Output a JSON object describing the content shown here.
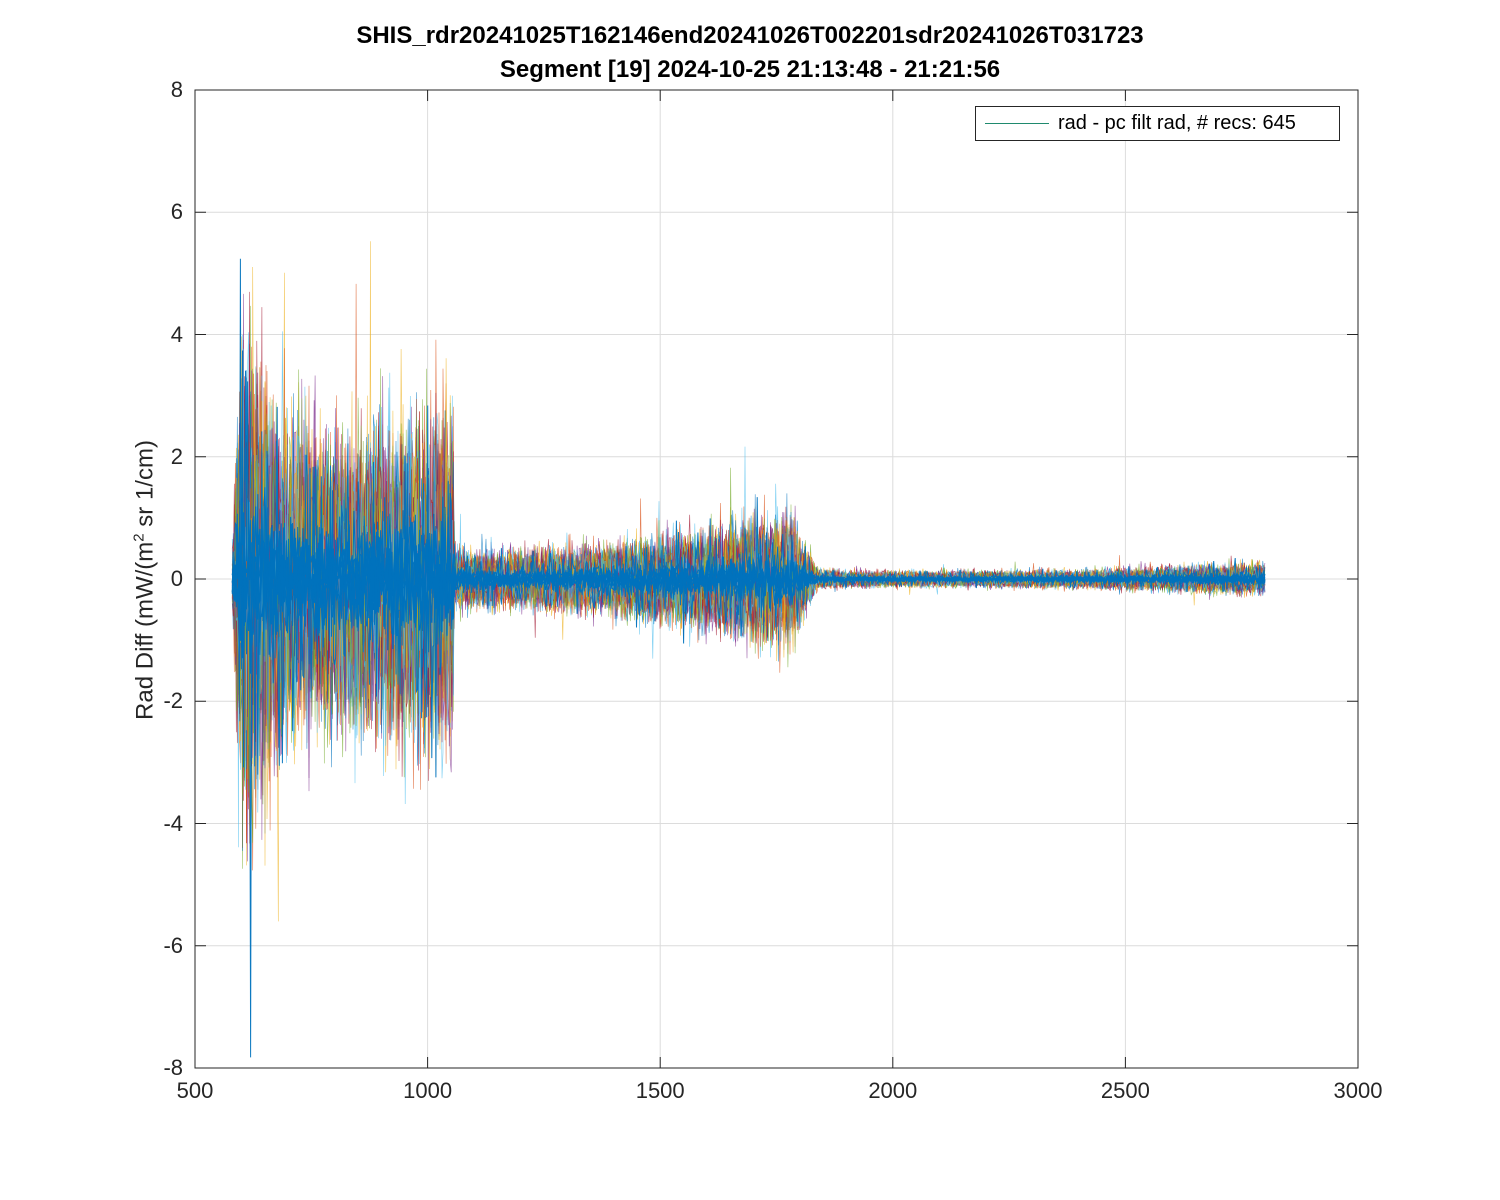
{
  "chart_data": {
    "type": "line",
    "title": "SHIS_rdr20241025T162146end20241026T002201sdr20241026T031723",
    "subtitle": "Segment [19] 2024-10-25 21:13:48 - 21:21:56",
    "xlabel": "",
    "ylabel_main": "Rad Diff (mW/(m",
    "ylabel_sup": "2",
    "ylabel_tail": " sr 1/cm)",
    "xlim": [
      500,
      3000
    ],
    "ylim": [
      -8,
      8
    ],
    "xticks": [
      "500",
      "1000",
      "1500",
      "2000",
      "2500",
      "3000"
    ],
    "yticks": [
      "8",
      "6",
      "4",
      "2",
      "0",
      "-2",
      "-4",
      "-6",
      "-8"
    ],
    "grid": true,
    "legend": {
      "label": "rad - pc filt rad, # recs:  645",
      "placement": "top-right",
      "line_color": "#1f8a6e"
    },
    "series_colors": [
      "#0072BD",
      "#D95319",
      "#EDB120",
      "#7E2F8E",
      "#77AC30",
      "#4DBEEE",
      "#A2142F"
    ],
    "num_records": 645,
    "x_range": [
      580,
      2800
    ],
    "envelope": [
      {
        "x": 580,
        "amp": 1.0
      },
      {
        "x": 600,
        "amp": 7.5
      },
      {
        "x": 640,
        "amp": 6.0
      },
      {
        "x": 700,
        "amp": 4.5
      },
      {
        "x": 800,
        "amp": 4.0
      },
      {
        "x": 900,
        "amp": 4.2
      },
      {
        "x": 1000,
        "amp": 4.6
      },
      {
        "x": 1055,
        "amp": 4.8
      },
      {
        "x": 1058,
        "amp": 0.8
      },
      {
        "x": 1200,
        "amp": 0.8
      },
      {
        "x": 1400,
        "amp": 1.0
      },
      {
        "x": 1600,
        "amp": 1.4
      },
      {
        "x": 1780,
        "amp": 1.9
      },
      {
        "x": 1810,
        "amp": 1.0
      },
      {
        "x": 1840,
        "amp": 0.25
      },
      {
        "x": 2000,
        "amp": 0.22
      },
      {
        "x": 2400,
        "amp": 0.25
      },
      {
        "x": 2800,
        "amp": 0.45
      }
    ]
  }
}
